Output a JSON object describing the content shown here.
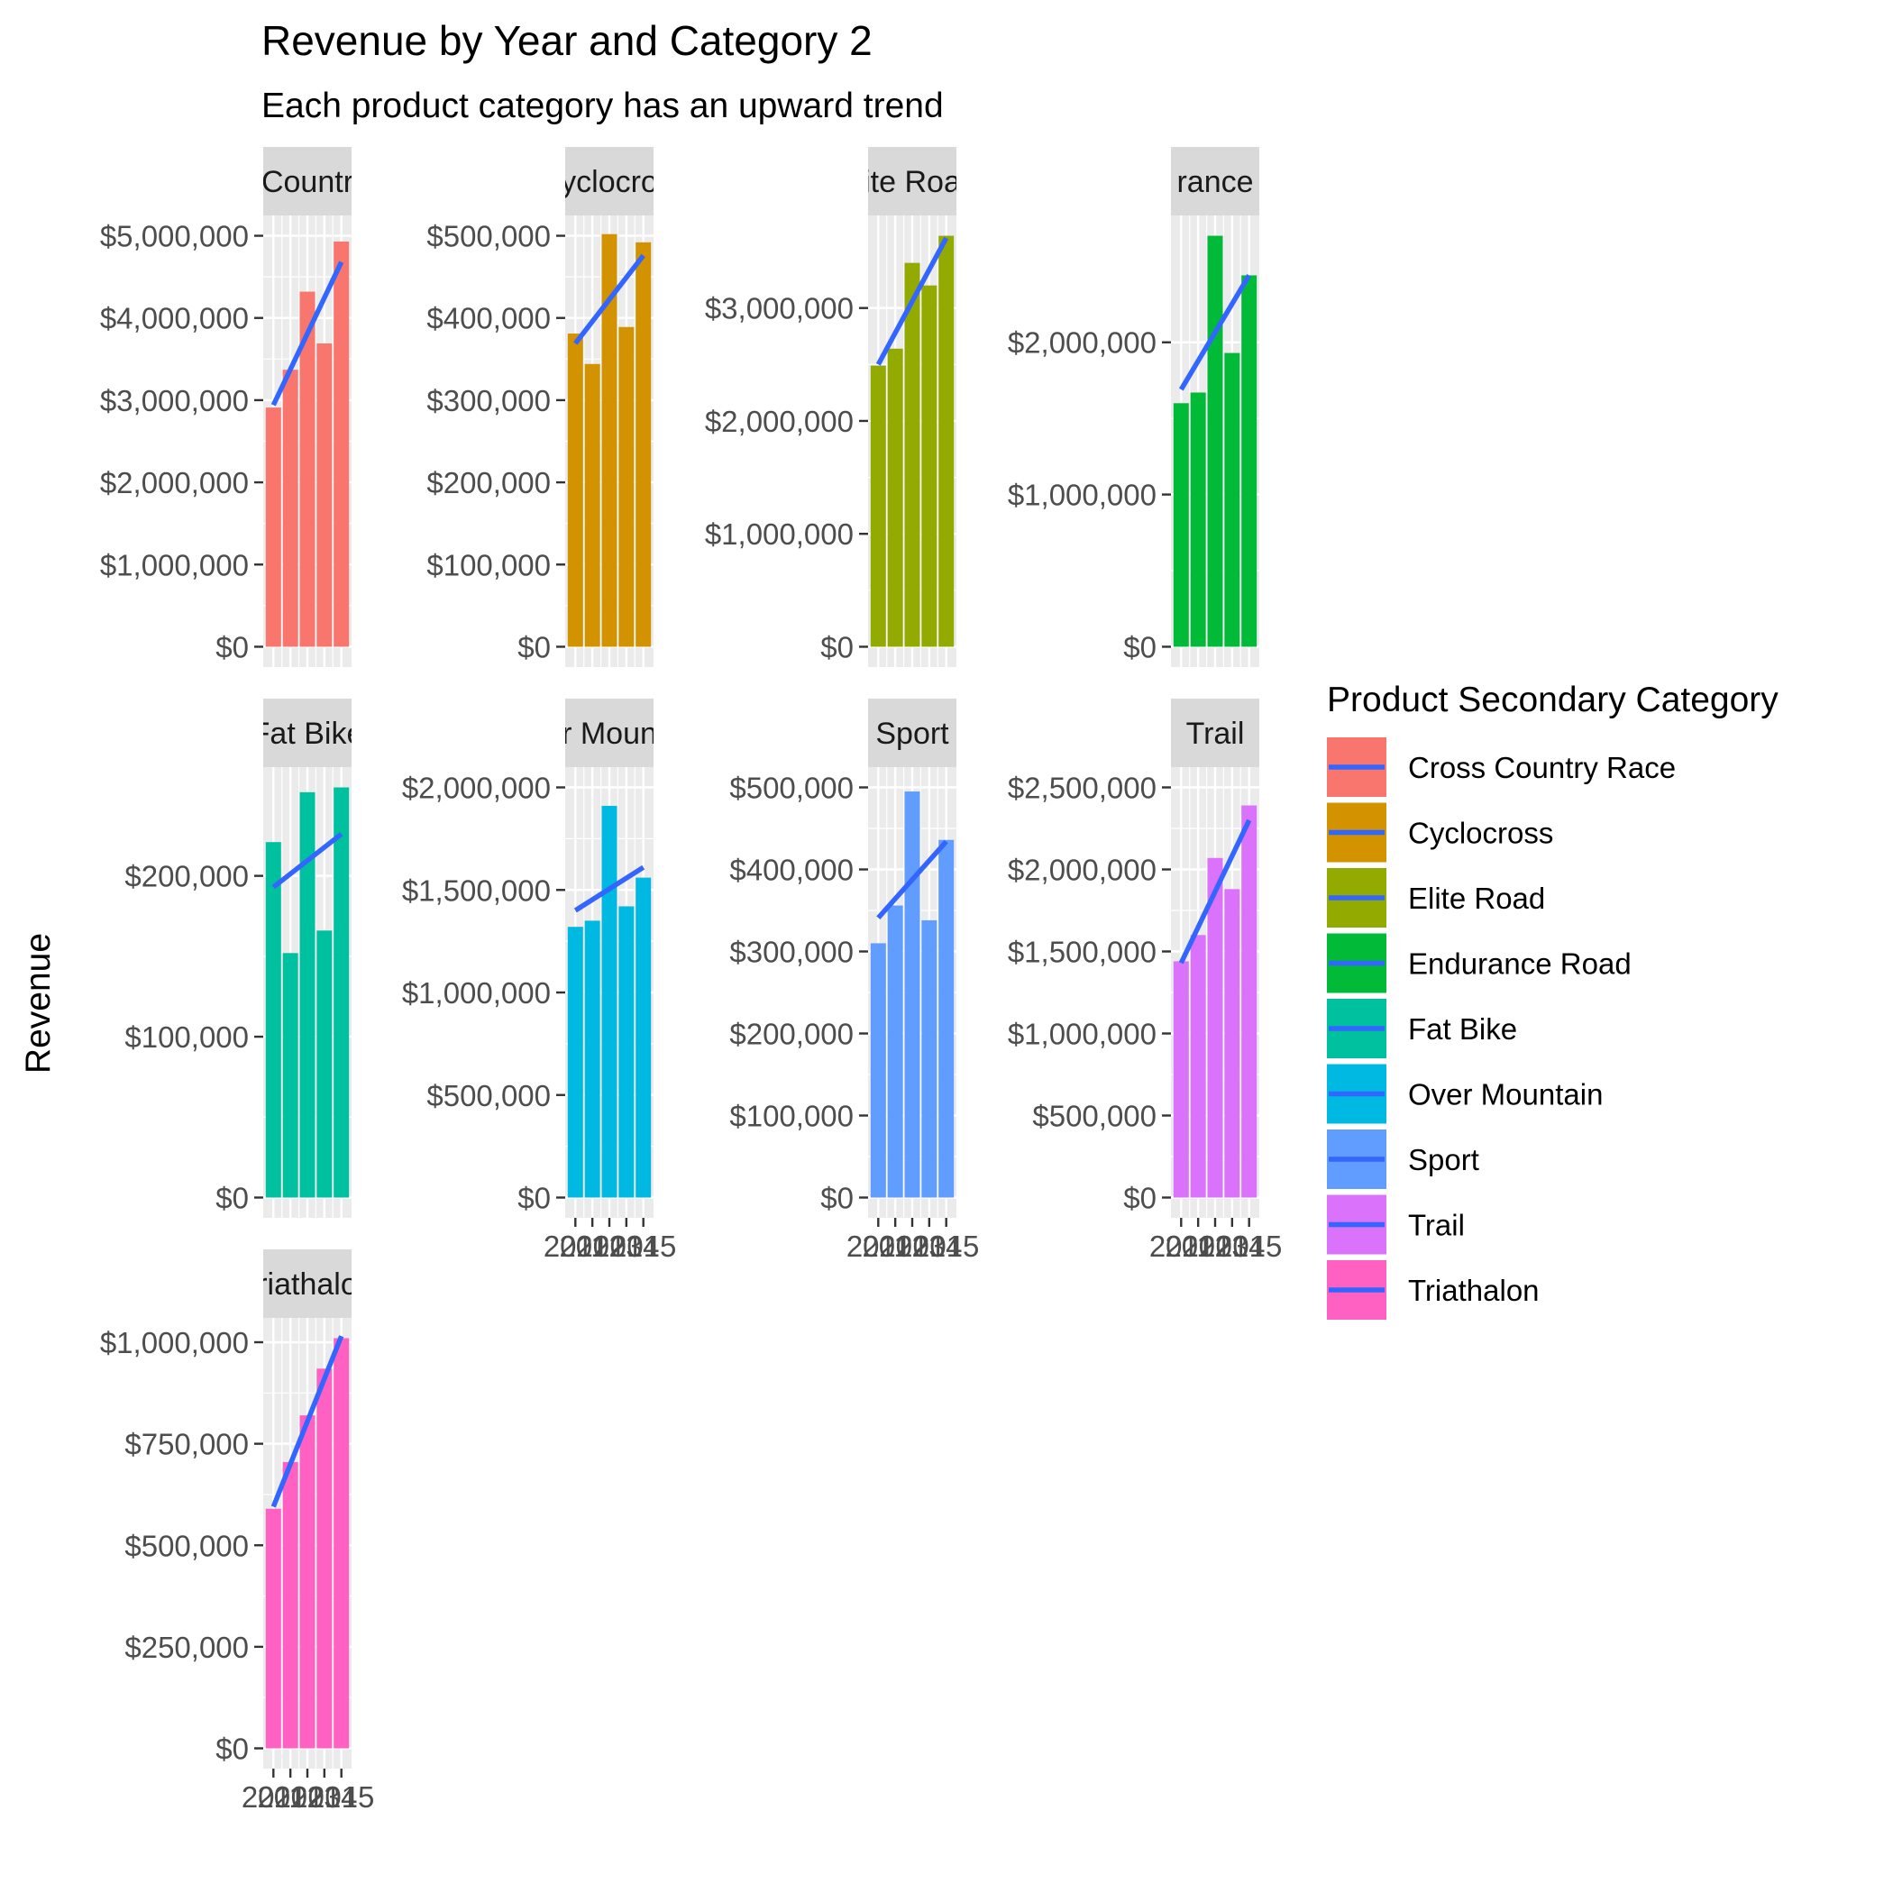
{
  "chart_data": {
    "type": "bar",
    "title": "Revenue by Year and Category 2",
    "subtitle": "Each product category has an upward trend",
    "xlabel": "",
    "ylabel": "Revenue",
    "x": [
      2011,
      2012,
      2013,
      2014,
      2015
    ],
    "trend_color": "#3366FF",
    "panel_background": "#EBEBEB",
    "strip_background": "#D9D9D9",
    "legend": {
      "title": "Product Secondary Category",
      "position": "right"
    },
    "facets": [
      {
        "name": "Cross Country Race",
        "strip_label": "Countr",
        "color": "#F8766D",
        "values": [
          2910000,
          3370000,
          4320000,
          3690000,
          4930000
        ],
        "trend": [
          2940000,
          4680000
        ],
        "ylim": [
          0,
          5000000
        ],
        "yticks": [
          0,
          1000000,
          2000000,
          3000000,
          4000000,
          5000000
        ],
        "ytick_labels": [
          "$0",
          "$1,000,000",
          "$2,000,000",
          "$3,000,000",
          "$4,000,000",
          "$5,000,000"
        ],
        "show_x": false,
        "xtick_labels": []
      },
      {
        "name": "Cyclocross",
        "strip_label": "yclocro",
        "color": "#D39200",
        "values": [
          381000,
          344000,
          502000,
          389000,
          492000
        ],
        "trend": [
          369000,
          476000
        ],
        "ylim": [
          0,
          500000
        ],
        "yticks": [
          0,
          100000,
          200000,
          300000,
          400000,
          500000
        ],
        "ytick_labels": [
          "$0",
          "$100,000",
          "$200,000",
          "$300,000",
          "$400,000",
          "$500,000"
        ],
        "show_x": false,
        "xtick_labels": []
      },
      {
        "name": "Elite Road",
        "strip_label": "ite Roa",
        "color": "#93AA00",
        "values": [
          2490000,
          2640000,
          3400000,
          3200000,
          3640000
        ],
        "trend": [
          2500000,
          3620000
        ],
        "ylim": [
          0,
          3640000
        ],
        "yticks": [
          0,
          1000000,
          2000000,
          3000000
        ],
        "ytick_labels": [
          "$0",
          "$1,000,000",
          "$2,000,000",
          "$3,000,000"
        ],
        "show_x": false,
        "xtick_labels": []
      },
      {
        "name": "Endurance Road",
        "strip_label": "rance",
        "color": "#00BA38",
        "values": [
          1600000,
          1670000,
          2700000,
          1930000,
          2440000
        ],
        "trend": [
          1690000,
          2440000
        ],
        "ylim": [
          0,
          2700000
        ],
        "yticks": [
          0,
          1000000,
          2000000
        ],
        "ytick_labels": [
          "$0",
          "$1,000,000",
          "$2,000,000"
        ],
        "show_x": false,
        "xtick_labels": []
      },
      {
        "name": "Fat Bike",
        "strip_label": "Fat Bike",
        "color": "#00C19F",
        "values": [
          221000,
          152000,
          252000,
          166000,
          255000
        ],
        "trend": [
          193000,
          226000
        ],
        "ylim": [
          0,
          255000
        ],
        "yticks": [
          0,
          100000,
          200000
        ],
        "ytick_labels": [
          "$0",
          "$100,000",
          "$200,000"
        ],
        "show_x": false,
        "xtick_labels": []
      },
      {
        "name": "Over Mountain",
        "strip_label": "r Moun",
        "color": "#00B9E3",
        "values": [
          1320000,
          1350000,
          1910000,
          1420000,
          1560000
        ],
        "trend": [
          1400000,
          1610000
        ],
        "ylim": [
          0,
          2000000
        ],
        "yticks": [
          0,
          500000,
          1000000,
          1500000,
          2000000
        ],
        "ytick_labels": [
          "$0",
          "$500,000",
          "$1,000,000",
          "$1,500,000",
          "$2,000,000"
        ],
        "show_x": true,
        "xtick_labels": [
          "2011",
          "2012",
          "2013",
          "2014",
          "2015"
        ]
      },
      {
        "name": "Sport",
        "strip_label": "Sport",
        "color": "#619CFF",
        "values": [
          310000,
          356000,
          495000,
          338000,
          436000
        ],
        "trend": [
          341000,
          434000
        ],
        "ylim": [
          0,
          500000
        ],
        "yticks": [
          0,
          100000,
          200000,
          300000,
          400000,
          500000
        ],
        "ytick_labels": [
          "$0",
          "$100,000",
          "$200,000",
          "$300,000",
          "$400,000",
          "$500,000"
        ],
        "show_x": true,
        "xtick_labels": [
          "2011",
          "2012",
          "2013",
          "2014",
          "2015"
        ]
      },
      {
        "name": "Trail",
        "strip_label": "Trail",
        "color": "#DB72FB",
        "values": [
          1440000,
          1600000,
          2070000,
          1880000,
          2390000
        ],
        "trend": [
          1430000,
          2300000
        ],
        "ylim": [
          0,
          2500000
        ],
        "yticks": [
          0,
          500000,
          1000000,
          1500000,
          2000000,
          2500000
        ],
        "ytick_labels": [
          "$0",
          "$500,000",
          "$1,000,000",
          "$1,500,000",
          "$2,000,000",
          "$2,500,000"
        ],
        "show_x": true,
        "xtick_labels": [
          "2011",
          "2012",
          "2013",
          "2014",
          "2015"
        ]
      },
      {
        "name": "Triathalon",
        "strip_label": "riathalo",
        "color": "#FF61C3",
        "values": [
          590000,
          705000,
          820000,
          935000,
          1010000
        ],
        "trend": [
          595000,
          1015000
        ],
        "ylim": [
          0,
          1010000
        ],
        "yticks": [
          0,
          250000,
          500000,
          750000,
          1000000
        ],
        "ytick_labels": [
          "$0",
          "$250,000",
          "$500,000",
          "$750,000",
          "$1,000,000"
        ],
        "show_x": true,
        "xtick_labels": [
          "2011",
          "2012",
          "2013",
          "2014",
          "2015"
        ]
      }
    ]
  }
}
